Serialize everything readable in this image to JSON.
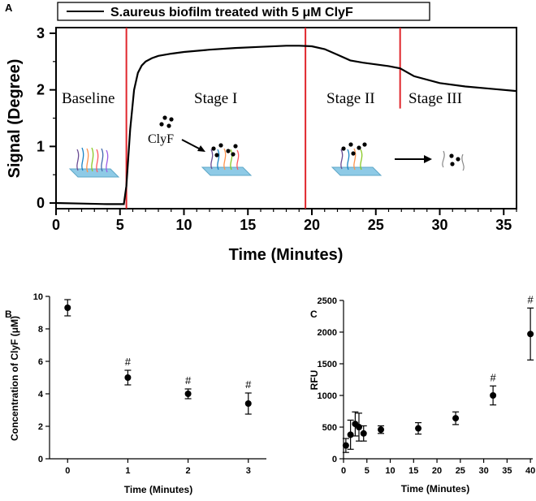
{
  "chart_data": [
    {
      "panel": "A",
      "type": "line",
      "title": "S.aureus biofilm treated with 5 μM ClyF",
      "legend_label": "S.aureus biofilm treated with 5 μM ClyF",
      "xlabel": "Time (Minutes)",
      "ylabel": "Signal (Degree)",
      "xlim": [
        0,
        36
      ],
      "ylim": [
        -0.1,
        3.1
      ],
      "xticks": [
        0,
        5,
        10,
        15,
        20,
        25,
        30,
        35
      ],
      "yticks": [
        0,
        1,
        2,
        3
      ],
      "series": [
        {
          "name": "S.aureus biofilm treated with 5 μM ClyF",
          "x": [
            0,
            2,
            4,
            5.3,
            5.5,
            5.8,
            6.1,
            6.4,
            6.7,
            7.0,
            7.5,
            8,
            9,
            10,
            12,
            14,
            16,
            18,
            19,
            20,
            21,
            22,
            23,
            24,
            25,
            26,
            26.9,
            28,
            30,
            32,
            34,
            36
          ],
          "values": [
            0,
            -0.01,
            -0.02,
            -0.02,
            0.3,
            1.3,
            2.0,
            2.3,
            2.43,
            2.5,
            2.56,
            2.6,
            2.64,
            2.67,
            2.71,
            2.74,
            2.76,
            2.78,
            2.78,
            2.77,
            2.72,
            2.62,
            2.52,
            2.48,
            2.45,
            2.42,
            2.38,
            2.24,
            2.12,
            2.06,
            2.02,
            1.98
          ]
        }
      ],
      "vlines": [
        5.5,
        19.5,
        26.9
      ],
      "annotations": [
        "Baseline",
        "Stage I",
        "Stage II",
        "Stage III",
        "ClyF"
      ]
    },
    {
      "panel": "B",
      "type": "scatter",
      "xlabel": "Time (Minutes)",
      "ylabel": "Concentration of ClyF (μM)",
      "xlim": [
        -0.3,
        3.3
      ],
      "ylim": [
        0,
        10
      ],
      "xticks": [
        0,
        1,
        2,
        3
      ],
      "yticks": [
        0,
        2,
        4,
        6,
        8,
        10
      ],
      "x": [
        0,
        1,
        2,
        3
      ],
      "values": [
        9.3,
        5.0,
        4.0,
        3.4
      ],
      "error": [
        0.5,
        0.45,
        0.3,
        0.65
      ],
      "marks": [
        "",
        "#",
        "#",
        "#"
      ]
    },
    {
      "panel": "C",
      "type": "scatter",
      "xlabel": "Time (Minutes)",
      "ylabel": "RFU",
      "xlim": [
        0,
        40.5
      ],
      "ylim": [
        0,
        2500
      ],
      "xticks": [
        0,
        5,
        10,
        15,
        20,
        25,
        30,
        35,
        40
      ],
      "yticks": [
        0,
        500,
        1000,
        1500,
        2000,
        2500
      ],
      "x": [
        0.5,
        1.5,
        2.5,
        3.3,
        4.3,
        8,
        16,
        24,
        32,
        40
      ],
      "values": [
        210,
        380,
        550,
        500,
        400,
        460,
        480,
        640,
        1000,
        1970
      ],
      "error": [
        110,
        230,
        190,
        220,
        120,
        60,
        90,
        100,
        150,
        410
      ],
      "marks": [
        "",
        "",
        "",
        "",
        "",
        "",
        "",
        "",
        "#",
        "#"
      ]
    }
  ],
  "panel_labels": {
    "a": "A",
    "b": "B",
    "c": "C"
  },
  "colors": {
    "line": "#000000",
    "stage_line": "#e0262c"
  }
}
